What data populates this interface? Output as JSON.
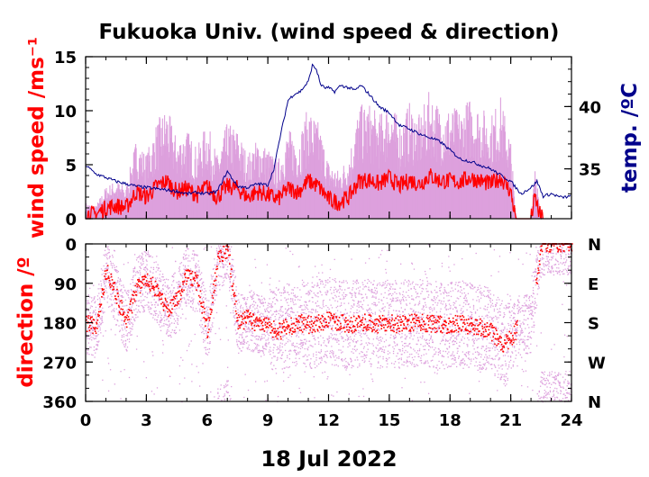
{
  "chart_data": [
    {
      "type": "line",
      "title": "Fukuoka Univ. (wind speed & direction)",
      "xlabel": "18 Jul 2022",
      "ylabel": "wind speed /ms⁻¹",
      "y2label": "temp. /ºC",
      "xlim": [
        0,
        24
      ],
      "ylim": [
        0,
        15
      ],
      "y2lim": [
        31,
        44
      ],
      "x_ticks": [
        "0",
        "3",
        "6",
        "9",
        "12",
        "15",
        "18",
        "21",
        "24"
      ],
      "y_ticks": [
        "0",
        "5",
        "10",
        "15"
      ],
      "y2_ticks": [
        "35",
        "40"
      ],
      "series": [
        {
          "name": "",
          "color": "#ff0000",
          "x": [
            0,
            0.5,
            1,
            1.5,
            2,
            2.5,
            3,
            3.5,
            4,
            4.5,
            5,
            5.5,
            6,
            6.5,
            7,
            7.5,
            8,
            8.5,
            9,
            9.5,
            10,
            10.5,
            11,
            11.5,
            12,
            12.5,
            13,
            13.5,
            14,
            14.5,
            15,
            15.5,
            16,
            16.5,
            17,
            17.5,
            18,
            18.5,
            19,
            19.5,
            20,
            20.5,
            21,
            21.2,
            21.3,
            21.5,
            22,
            22.2,
            22.4,
            22.6
          ],
          "y": [
            0.5,
            0.4,
            1.0,
            1.2,
            1.0,
            2.5,
            2.0,
            3.0,
            3.5,
            2.5,
            2.8,
            2.2,
            3.0,
            2.0,
            3.0,
            2.8,
            2.0,
            2.5,
            2.2,
            1.8,
            2.8,
            2.5,
            3.5,
            3.0,
            1.8,
            1.5,
            2.0,
            3.5,
            3.6,
            3.2,
            3.8,
            3.0,
            3.6,
            3.2,
            4.0,
            3.5,
            3.5,
            3.4,
            3.8,
            3.5,
            3.2,
            3.8,
            2.5,
            0.5,
            0,
            0,
            0,
            2.0,
            0.5,
            0
          ]
        },
        {
          "name": "",
          "color": "#00008b",
          "axis": "right",
          "x": [
            0,
            0.5,
            1,
            1.5,
            2,
            2.5,
            3,
            3.5,
            4,
            4.5,
            5,
            5.5,
            6,
            6.5,
            7,
            7.5,
            8,
            8.5,
            9,
            9.3,
            9.6,
            10,
            10.3,
            10.6,
            11,
            11.2,
            11.4,
            11.6,
            11.8,
            12,
            12.3,
            12.6,
            13,
            13.3,
            13.6,
            14,
            14.5,
            15,
            15.5,
            16,
            16.5,
            17,
            17.5,
            18,
            18.5,
            19,
            19.5,
            20,
            20.5,
            21,
            21.5,
            22,
            22.3,
            22.6,
            23,
            23.5,
            24
          ],
          "y": [
            35.3,
            34.6,
            34.3,
            34.0,
            33.8,
            33.6,
            33.5,
            33.4,
            33.3,
            33.2,
            33.0,
            33.1,
            33.0,
            33.2,
            34.8,
            33.6,
            33.5,
            33.8,
            33.7,
            35.0,
            37.5,
            40.5,
            41.0,
            41.2,
            42.0,
            43.3,
            43.0,
            41.8,
            41.5,
            41.5,
            41.2,
            41.7,
            41.5,
            41.3,
            41.7,
            41.0,
            40.0,
            39.5,
            38.5,
            38.2,
            37.8,
            37.5,
            37.2,
            36.5,
            35.8,
            35.6,
            35.3,
            35.0,
            34.5,
            34.0,
            33.0,
            33.5,
            34.0,
            32.8,
            33.0,
            32.7,
            32.8
          ]
        }
      ],
      "gust_envelope_color": "#dda0dd"
    },
    {
      "type": "scatter",
      "ylabel": "direction /º",
      "xlim": [
        0,
        24
      ],
      "ylim": [
        360,
        0
      ],
      "y_ticks": [
        "0",
        "90",
        "180",
        "270",
        "360"
      ],
      "y2_ticks": [
        "N",
        "E",
        "S",
        "W",
        "N"
      ],
      "series": [
        {
          "name": "",
          "color": "#ff0000",
          "x": [
            0,
            0.5,
            1,
            1.5,
            2,
            2.5,
            3,
            3.5,
            4,
            4.5,
            5,
            5.5,
            6,
            6.5,
            7,
            7.5,
            8,
            8.5,
            9,
            9.5,
            10,
            10.5,
            11,
            11.5,
            12,
            12.5,
            13,
            13.5,
            14,
            14.5,
            15,
            15.5,
            16,
            16.5,
            17,
            17.5,
            18,
            18.5,
            19,
            19.5,
            20,
            20.5,
            21,
            21.5,
            22,
            22.5,
            23,
            23.5,
            24
          ],
          "y": [
            180,
            190,
            60,
            120,
            180,
            100,
            80,
            110,
            150,
            130,
            70,
            90,
            200,
            40,
            10,
            180,
            170,
            185,
            190,
            200,
            190,
            180,
            185,
            180,
            175,
            180,
            185,
            180,
            180,
            185,
            180,
            185,
            180,
            180,
            182,
            185,
            185,
            180,
            190,
            190,
            200,
            230,
            215,
            180,
            180,
            0,
            0,
            0,
            0
          ]
        }
      ],
      "scatter_envelope_color": "#dda0dd"
    }
  ]
}
